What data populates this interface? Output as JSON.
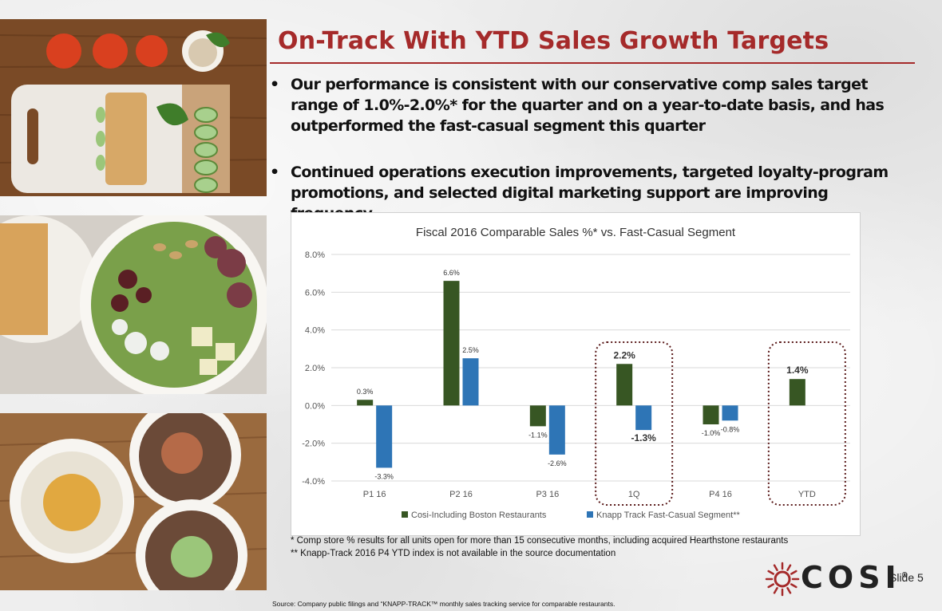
{
  "slide": {
    "title": "On-Track With YTD Sales Growth Targets",
    "bullets": [
      "Our performance is consistent with our conservative comp sales target range of 1.0%-2.0%* for the quarter and on a year-to-date basis, and has outperformed the fast-casual segment this quarter",
      "Continued operations execution improvements, targeted loyalty-program promotions, and selected digital marketing support are improving frequency"
    ],
    "bullet_char": "•",
    "footnotes": [
      "* Comp store % results for all units open for more than 15 consecutive months, including acquired Hearthstone restaurants",
      "** Knapp-Track 2016 P4 YTD  index is not available in the source documentation"
    ],
    "source": "Source: Company public filings and “KNAPP-TRACK™   monthly sales tracking service for comparable restaurants.",
    "slide_number": "Slide 5",
    "logo_text": "COSI",
    "logo_mark": "®"
  },
  "colors": {
    "title": "#a52a2a",
    "series1": "#375623",
    "series2": "#2e75b6",
    "highlight_box": "#5a1a1a"
  },
  "chart_data": {
    "type": "bar",
    "title": "Fiscal 2016 Comparable Sales %* vs. Fast-Casual Segment",
    "categories": [
      "P1 16",
      "P2 16",
      "P3 16",
      "1Q",
      "P4 16",
      "YTD"
    ],
    "series": [
      {
        "name": "Cosi-Including Boston Restaurants",
        "values": [
          0.3,
          6.6,
          -1.1,
          2.2,
          -1.0,
          1.4
        ],
        "labels": [
          "0.3%",
          "6.6%",
          "-1.1%",
          "2.2%",
          "-1.0%",
          "1.4%"
        ]
      },
      {
        "name": "Knapp Track Fast-Casual Segment**",
        "values": [
          -3.3,
          2.5,
          -2.6,
          -1.3,
          -0.8,
          null
        ],
        "labels": [
          "-3.3%",
          "2.5%",
          "-2.6%",
          "-1.3%",
          "-0.8%",
          ""
        ]
      }
    ],
    "ylim": [
      -4.0,
      8.0
    ],
    "yticks": [
      "-4.0%",
      "-2.0%",
      "0.0%",
      "2.0%",
      "4.0%",
      "6.0%",
      "8.0%"
    ],
    "ytick_values": [
      -4,
      -2,
      0,
      2,
      4,
      6,
      8
    ],
    "highlighted_categories": [
      "1Q",
      "YTD"
    ],
    "grid": true,
    "legend": "bottom"
  }
}
